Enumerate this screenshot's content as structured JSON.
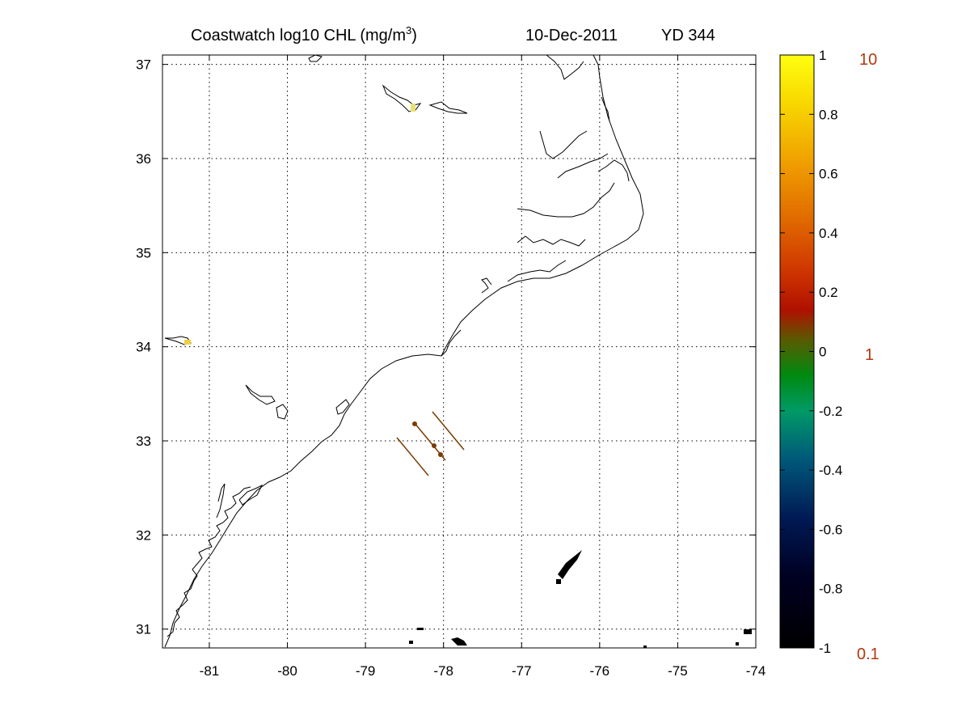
{
  "title": {
    "prefix": "Coastwatch  log10  CHL (mg/m",
    "superscript": "3",
    "suffix": ")",
    "date": "10-Dec-2011",
    "yearday": "YD 344"
  },
  "map": {
    "lon_range": [
      -81.6,
      -74
    ],
    "lat_range": [
      30.8,
      37.1
    ],
    "grid": true,
    "lon_ticks": [
      "-81",
      "-80",
      "-79",
      "-78",
      "-77",
      "-76",
      "-75",
      "-74"
    ],
    "lat_ticks": [
      "37",
      "36",
      "35",
      "34",
      "33",
      "32",
      "31"
    ],
    "coastline_color": "#000000",
    "transect_color": "#7a3c00"
  },
  "colorbar": {
    "ticks": [
      "1",
      "0.8",
      "0.6",
      "0.4",
      "0.2",
      "0",
      "-0.2",
      "-0.4",
      "-0.6",
      "-0.8",
      "-1"
    ],
    "linear_labels": [
      "10",
      "1",
      "0.1"
    ],
    "linear_label_color": "#b03a10"
  }
}
